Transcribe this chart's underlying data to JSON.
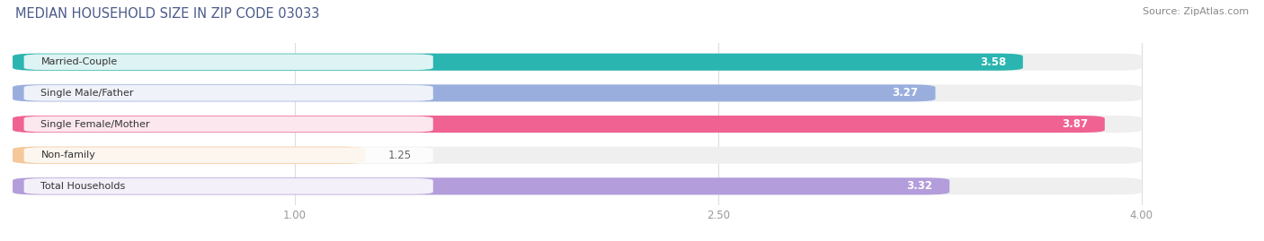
{
  "title": "MEDIAN HOUSEHOLD SIZE IN ZIP CODE 03033",
  "source": "Source: ZipAtlas.com",
  "categories": [
    "Married-Couple",
    "Single Male/Father",
    "Single Female/Mother",
    "Non-family",
    "Total Households"
  ],
  "values": [
    3.58,
    3.27,
    3.87,
    1.25,
    3.32
  ],
  "bar_colors": [
    "#2ab5b0",
    "#9aaede",
    "#f06292",
    "#f5c89a",
    "#b39ddb"
  ],
  "bar_bg_color": "#efefef",
  "xlim": [
    0.0,
    4.3
  ],
  "xdata_max": 4.0,
  "xticks": [
    1.0,
    2.5,
    4.0
  ],
  "xtick_labels": [
    "1.00",
    "2.50",
    "4.00"
  ],
  "bar_height": 0.55,
  "bar_spacing": 1.0,
  "title_color": "#4a5a8a",
  "source_color": "#888888",
  "value_fontsize": 8.5,
  "label_fontsize": 8.0,
  "title_fontsize": 10.5,
  "source_fontsize": 8,
  "xtick_fontsize": 8.5,
  "value_outside_threshold": 1.5,
  "value_outside_color": "#666666",
  "value_inside_color": "#ffffff"
}
